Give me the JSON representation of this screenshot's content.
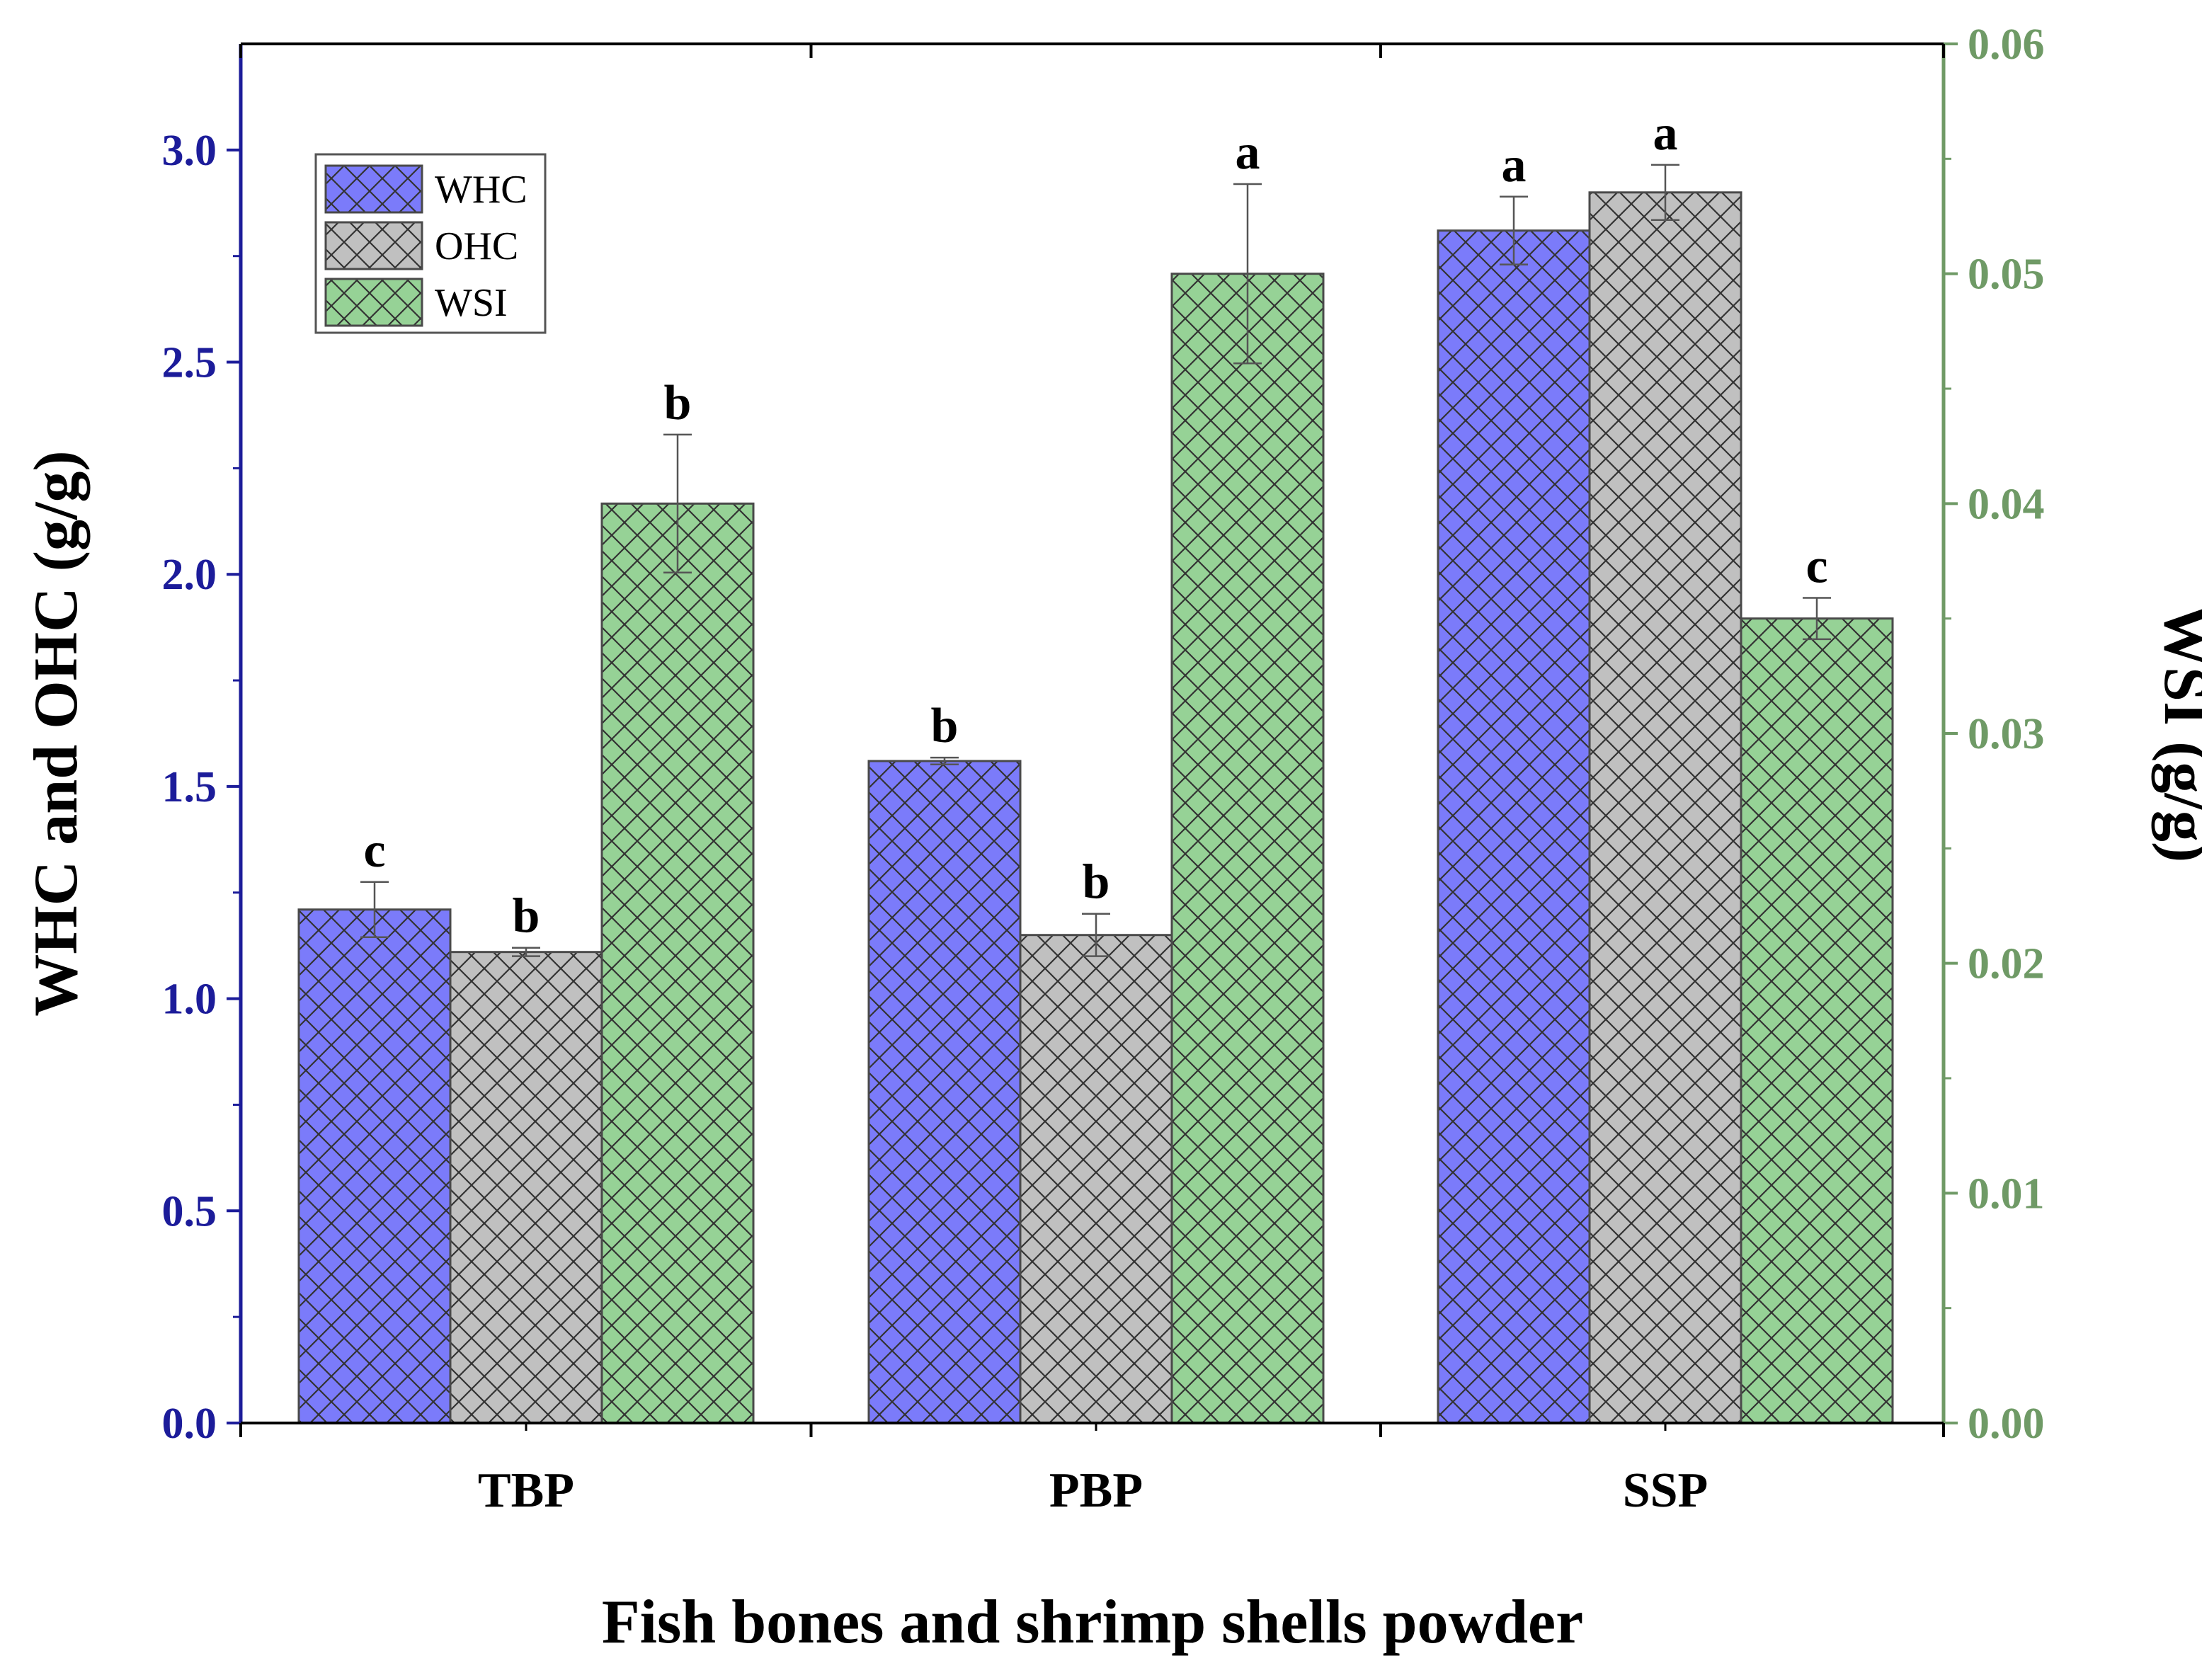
{
  "chart_data": {
    "type": "bar",
    "xlabel": "Fish bones and shrimp shells powder",
    "ylabel_left": "WHC and OHC (g/g)",
    "ylabel_right": "WSI (g/g)",
    "categories": [
      "TBP",
      "PBP",
      "SSP"
    ],
    "ylim_left": [
      0,
      3.25
    ],
    "ylim_right": [
      0,
      0.06
    ],
    "left_ticks": [
      "0.0",
      "0.5",
      "1.0",
      "1.5",
      "2.0",
      "2.5",
      "3.0"
    ],
    "right_ticks": [
      "0.00",
      "0.01",
      "0.02",
      "0.03",
      "0.04",
      "0.05",
      "0.06"
    ],
    "grid": false,
    "legend_position": "top-left",
    "series": [
      {
        "name": "WHC",
        "axis": "left",
        "color": "#7b7bfa",
        "values": [
          1.21,
          1.56,
          2.81
        ],
        "errors": [
          0.065,
          0.008,
          0.08
        ],
        "labels": [
          "c",
          "b",
          "a"
        ]
      },
      {
        "name": "OHC",
        "axis": "left",
        "color": "#c0c0c0",
        "values": [
          1.11,
          1.15,
          2.9
        ],
        "errors": [
          0.01,
          0.05,
          0.065
        ],
        "labels": [
          "b",
          "b",
          "a"
        ]
      },
      {
        "name": "WSI",
        "axis": "right",
        "color": "#96d296",
        "values": [
          0.04,
          0.05,
          0.035
        ],
        "errors": [
          0.003,
          0.0039,
          0.0009
        ],
        "labels": [
          "b",
          "a",
          "c"
        ]
      }
    ],
    "colors": {
      "left_axis": "#1c1c9a",
      "right_axis": "#6f9a66",
      "text": "#000000"
    }
  }
}
